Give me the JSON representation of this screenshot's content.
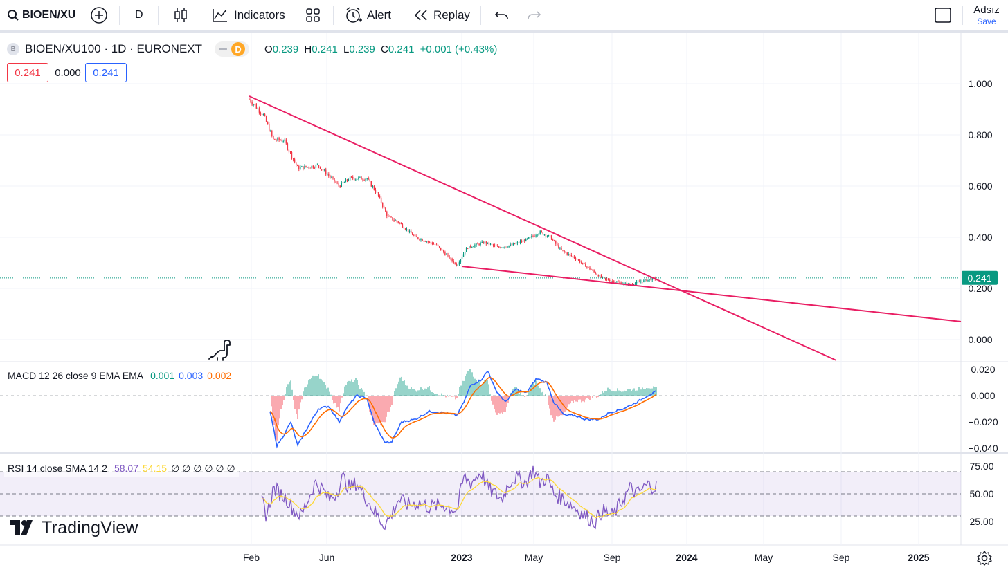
{
  "toolbar": {
    "symbol": "BIOEN/XU",
    "interval": "D",
    "indicators_label": "Indicators",
    "alert_label": "Alert",
    "replay_label": "Replay",
    "layout_name": "Adsız",
    "save_label": "Save"
  },
  "legend": {
    "symbol_badge": "B",
    "title": "BIOEN/XU100 · 1D · EURONEXT",
    "interval_badge": "D",
    "o_label": "O",
    "o_value": "0.239",
    "h_label": "H",
    "h_value": "0.241",
    "l_label": "L",
    "l_value": "0.239",
    "c_label": "C",
    "c_value": "0.241",
    "change": "+0.001 (+0.43%)",
    "bid": "0.241",
    "spread": "0.000",
    "ask": "0.241"
  },
  "price_axis": {
    "ticks": [
      "1.000",
      "0.800",
      "0.600",
      "0.400",
      "0.200",
      "0.000"
    ],
    "last_price": "0.241"
  },
  "macd": {
    "label": "MACD 12 26 close 9 EMA EMA",
    "v1": "0.001",
    "v2": "0.003",
    "v3": "0.002",
    "ticks": [
      "0.020",
      "0.000",
      "−0.020",
      "−0.040"
    ]
  },
  "rsi": {
    "label": "RSI 14 close SMA 14 2",
    "v1": "58.07",
    "v2": "54.15",
    "extras": "∅ ∅ ∅ ∅ ∅ ∅",
    "ticks": [
      "75.00",
      "50.00",
      "25.00"
    ]
  },
  "time_axis": [
    "Feb",
    "Jun",
    "2023",
    "May",
    "Sep",
    "2024",
    "May",
    "Sep",
    "2025"
  ],
  "brand": "TradingView",
  "colors": {
    "up": "#089981",
    "down": "#f23645",
    "trendline": "#e91e63",
    "macd_line": "#2962ff",
    "signal_line": "#ff6d00",
    "rsi_line": "#7e57c2",
    "rsi_sma": "#fdd835",
    "last_price_bg": "#089981"
  }
}
